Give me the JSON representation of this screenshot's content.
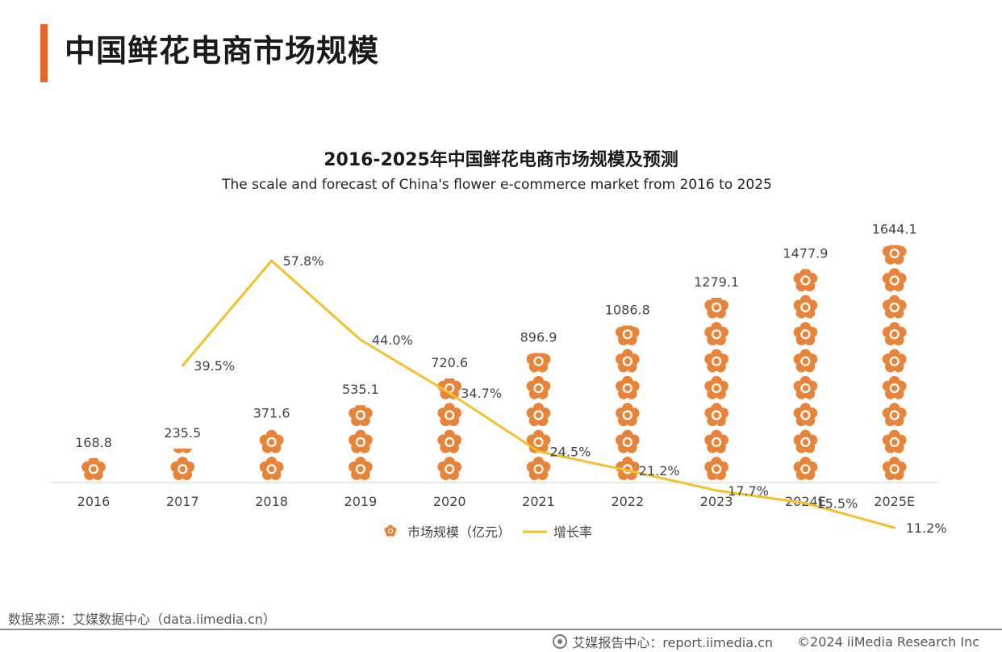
{
  "page": {
    "title": "中国鲜花电商市场规模",
    "accent_color": "#E8652D"
  },
  "chart_data": {
    "type": "bar+line",
    "title": "2016-2025年中国鲜花电商市场规模及预测",
    "subtitle": "The scale and forecast of China's flower e-commerce market from 2016 to 2025",
    "categories": [
      "2016",
      "2017",
      "2018",
      "2019",
      "2020",
      "2021",
      "2022",
      "2023",
      "2024E",
      "2025E"
    ],
    "series": [
      {
        "name": "市场规模（亿元）",
        "kind": "pictorial-bar",
        "values": [
          168.8,
          235.5,
          371.6,
          535.1,
          720.6,
          896.9,
          1086.8,
          1279.1,
          1477.9,
          1644.1
        ],
        "labels": [
          "168.8",
          "235.5",
          "371.6",
          "535.1",
          "720.6",
          "896.9",
          "1086.8",
          "1279.1",
          "1477.9",
          "1644.1"
        ],
        "color": "#E8843A",
        "unit_value": 55
      },
      {
        "name": "增长率",
        "kind": "line",
        "values": [
          null,
          39.5,
          57.8,
          44.0,
          34.7,
          24.5,
          21.2,
          17.7,
          15.5,
          11.2
        ],
        "labels": [
          "",
          "39.5%",
          "57.8%",
          "44.0%",
          "34.7%",
          "24.5%",
          "21.2%",
          "17.7%",
          "15.5%",
          "11.2%"
        ],
        "color": "#F2C12E"
      }
    ],
    "ylim_bar": [
      0,
      1800
    ],
    "ylim_line": [
      0,
      70
    ],
    "legend": "bottom-center",
    "grid": false
  },
  "footer": {
    "source": "数据来源：艾媒数据中心（data.iimedia.cn）",
    "report": "艾媒报告中心：report.iimedia.cn",
    "copyright": "©2024  iiMedia Research Inc"
  }
}
